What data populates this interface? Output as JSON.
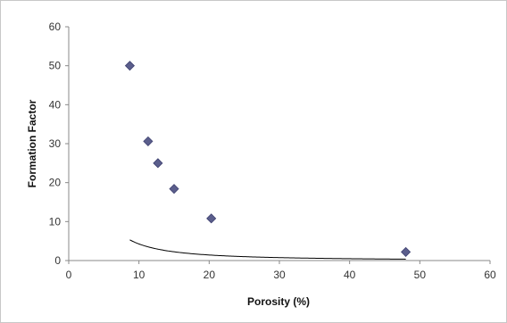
{
  "chart_data": {
    "type": "scatter",
    "xlabel": "Porosity (%)",
    "ylabel": "Formation Factor",
    "xlim": [
      0,
      60
    ],
    "ylim": [
      0,
      60
    ],
    "x_ticks": [
      "0",
      "10",
      "20",
      "30",
      "40",
      "50",
      "60"
    ],
    "y_ticks": [
      "0",
      "10",
      "20",
      "30",
      "40",
      "50",
      "60"
    ],
    "grid": false,
    "legend": "none",
    "points": [
      {
        "x": 8.7,
        "y": 50
      },
      {
        "x": 11.3,
        "y": 30.6
      },
      {
        "x": 12.7,
        "y": 25
      },
      {
        "x": 15.0,
        "y": 18.4
      },
      {
        "x": 20.3,
        "y": 10.8
      },
      {
        "x": 48.0,
        "y": 2.2
      }
    ],
    "trendline": {
      "type": "power",
      "coefficient": 1.62,
      "exponent": -1.58
    },
    "colors": {
      "marker": "#5b5e8c",
      "line": "#000000",
      "axis": "#888888"
    }
  }
}
